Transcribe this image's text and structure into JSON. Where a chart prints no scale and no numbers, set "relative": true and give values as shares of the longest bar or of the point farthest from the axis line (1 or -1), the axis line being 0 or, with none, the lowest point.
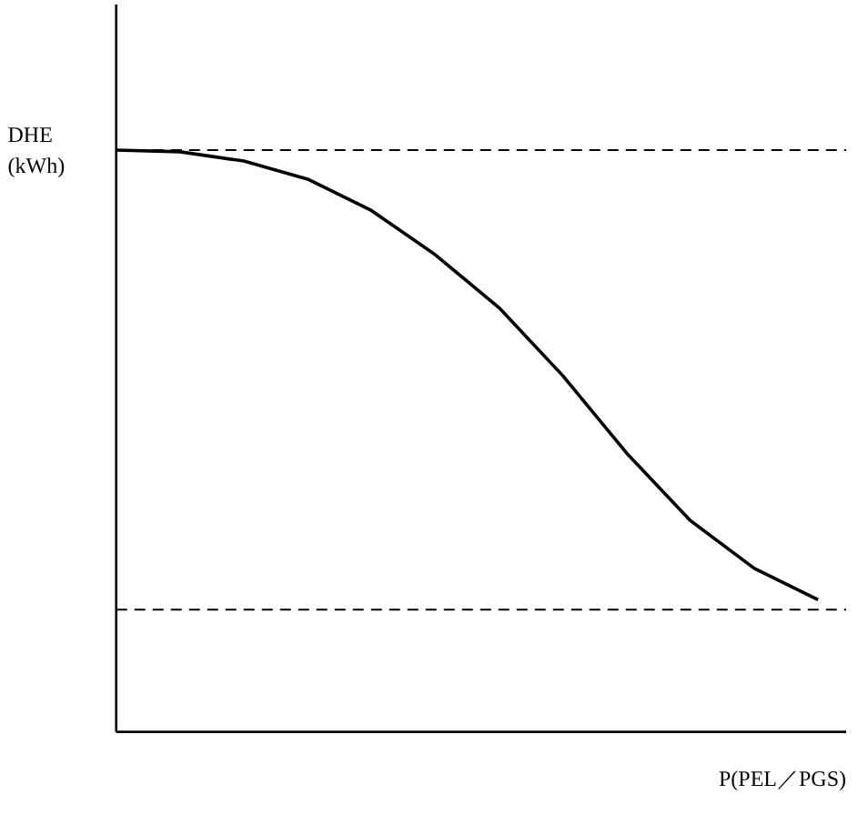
{
  "chart_data": {
    "type": "line",
    "relative": true,
    "xlabel": "P(PEL／PGS)",
    "ylabel": "DHE\n(kWh)",
    "categories": [
      null,
      null,
      null,
      null,
      null,
      null,
      null,
      null,
      null,
      null,
      null,
      null
    ],
    "series": [
      {
        "color": "#000000",
        "values": [
          1,
          0.997,
          0.981,
          0.95,
          0.896,
          0.82,
          0.729,
          0.612,
          0.479,
          0.363,
          0.281,
          0.227
        ]
      }
    ],
    "ref_lines": [
      {
        "axis": "y",
        "value": 1,
        "color": "#000000",
        "line_style": "dashed"
      },
      {
        "axis": "y",
        "value": 0.21,
        "color": "#000000",
        "line_style": "dashed"
      }
    ],
    "marker": "none",
    "line_style": "solid"
  }
}
